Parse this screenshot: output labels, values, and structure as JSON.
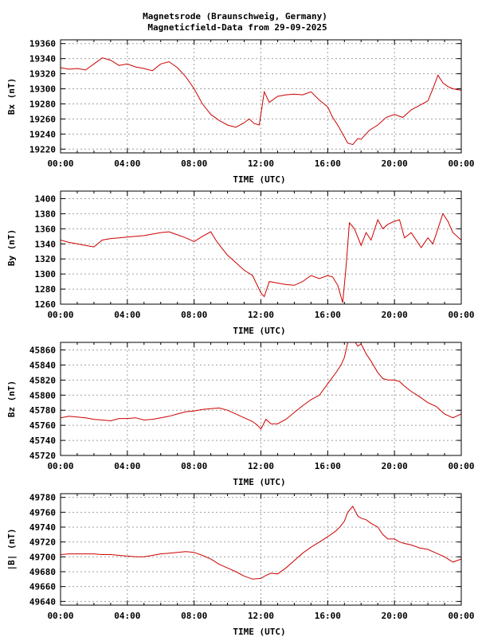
{
  "title_line1": "Magnetsrode (Braunschweig, Germany)",
  "title_line2": "Magneticfield-Data from 29-09-2025",
  "colors": {
    "line": "#cc0000",
    "grid": "#a0a0a0",
    "axis": "#000000"
  },
  "chart_data": [
    {
      "type": "line",
      "series": [
        {
          "name": "",
          "x": [
            0,
            0.5,
            1,
            1.5,
            2,
            2.5,
            3,
            3.5,
            4,
            4.5,
            5,
            5.5,
            6,
            6.5,
            7,
            7.5,
            8,
            8.5,
            9,
            9.5,
            10,
            10.5,
            11,
            11.3,
            11.6,
            11.9,
            12.2,
            12.5,
            13,
            13.5,
            14,
            14.5,
            15,
            15.5,
            16,
            16.3,
            16.6,
            16.9,
            17.2,
            17.5,
            17.8,
            18,
            18.5,
            19,
            19.5,
            20,
            20.5,
            21,
            21.5,
            22,
            22.3,
            22.6,
            22.9,
            23.2,
            23.5,
            24
          ],
          "y": [
            19328,
            19326,
            19327,
            19325,
            19333,
            19341,
            19338,
            19331,
            19333,
            19329,
            19327,
            19324,
            19333,
            19336,
            19328,
            19316,
            19300,
            19280,
            19266,
            19258,
            19252,
            19249,
            19255,
            19260,
            19254,
            19252,
            19296,
            19282,
            19290,
            19292,
            19293,
            19292,
            19296,
            19285,
            19276,
            19262,
            19252,
            19240,
            19228,
            19226,
            19234,
            19233,
            19245,
            19252,
            19262,
            19266,
            19262,
            19272,
            19278,
            19284,
            19300,
            19318,
            19308,
            19303,
            19300,
            19298
          ]
        }
      ],
      "xlabel": "TIME (UTC)",
      "ylabel": "Bx (nT)",
      "xlim": [
        0,
        24
      ],
      "ylim": [
        19215,
        19365
      ],
      "xticks": [
        "00:00",
        "04:00",
        "08:00",
        "12:00",
        "16:00",
        "20:00",
        "00:00"
      ],
      "yticks": [
        19220,
        19240,
        19260,
        19280,
        19300,
        19320,
        19340,
        19360
      ]
    },
    {
      "type": "line",
      "series": [
        {
          "name": "",
          "x": [
            0,
            0.5,
            1,
            1.5,
            2,
            2.5,
            3,
            3.5,
            4,
            4.5,
            5,
            5.5,
            6,
            6.5,
            7,
            7.5,
            8,
            8.5,
            9,
            9.3,
            9.6,
            10,
            10.5,
            11,
            11.5,
            12,
            12.2,
            12.5,
            13,
            13.5,
            14,
            14.5,
            15,
            15.5,
            16,
            16.3,
            16.6,
            16.9,
            17.1,
            17.3,
            17.6,
            18,
            18.3,
            18.6,
            19,
            19.3,
            19.6,
            20,
            20.3,
            20.6,
            21,
            21.3,
            21.6,
            22,
            22.3,
            22.6,
            22.9,
            23.2,
            23.5,
            24
          ],
          "y": [
            1345,
            1342,
            1340,
            1338,
            1336,
            1345,
            1347,
            1348,
            1349,
            1350,
            1351,
            1353,
            1355,
            1356,
            1352,
            1348,
            1343,
            1350,
            1356,
            1345,
            1336,
            1325,
            1315,
            1305,
            1298,
            1275,
            1270,
            1290,
            1288,
            1286,
            1285,
            1290,
            1298,
            1294,
            1298,
            1296,
            1285,
            1262,
            1310,
            1368,
            1360,
            1338,
            1355,
            1345,
            1372,
            1360,
            1366,
            1370,
            1372,
            1348,
            1355,
            1345,
            1335,
            1348,
            1340,
            1360,
            1380,
            1370,
            1355,
            1345
          ]
        }
      ],
      "xlabel": "TIME (UTC)",
      "ylabel": "By (nT)",
      "xlim": [
        0,
        24
      ],
      "ylim": [
        1260,
        1410
      ],
      "xticks": [
        "00:00",
        "04:00",
        "08:00",
        "12:00",
        "16:00",
        "20:00",
        "00:00"
      ],
      "yticks": [
        1260,
        1280,
        1300,
        1320,
        1340,
        1360,
        1380,
        1400
      ]
    },
    {
      "type": "line",
      "series": [
        {
          "name": "",
          "x": [
            0,
            0.5,
            1,
            1.5,
            2,
            2.5,
            3,
            3.5,
            4,
            4.5,
            5,
            5.5,
            6,
            6.5,
            7,
            7.5,
            8,
            8.5,
            9,
            9.5,
            10,
            10.5,
            11,
            11.5,
            11.8,
            12,
            12.3,
            12.6,
            13,
            13.5,
            14,
            14.5,
            15,
            15.5,
            16,
            16.5,
            16.8,
            17,
            17.2,
            17.5,
            17.8,
            18,
            18.3,
            18.6,
            19,
            19.3,
            19.6,
            20,
            20.3,
            20.6,
            21,
            21.5,
            22,
            22.5,
            23,
            23.5,
            24
          ],
          "y": [
            45770,
            45772,
            45771,
            45770,
            45768,
            45767,
            45766,
            45769,
            45769,
            45770,
            45767,
            45768,
            45770,
            45772,
            45775,
            45778,
            45779,
            45781,
            45782,
            45783,
            45780,
            45775,
            45770,
            45765,
            45760,
            45755,
            45768,
            45762,
            45762,
            45768,
            45777,
            45786,
            45794,
            45800,
            45815,
            45830,
            45840,
            45850,
            45870,
            45875,
            45865,
            45868,
            45855,
            45845,
            45830,
            45822,
            45820,
            45820,
            45818,
            45812,
            45805,
            45798,
            45790,
            45785,
            45775,
            45770,
            45775
          ]
        }
      ],
      "xlabel": "TIME (UTC)",
      "ylabel": "Bz (nT)",
      "xlim": [
        0,
        24
      ],
      "ylim": [
        45720,
        45870
      ],
      "xticks": [
        "00:00",
        "04:00",
        "08:00",
        "12:00",
        "16:00",
        "20:00",
        "00:00"
      ],
      "yticks": [
        45720,
        45740,
        45760,
        45780,
        45800,
        45820,
        45840,
        45860
      ]
    },
    {
      "type": "line",
      "series": [
        {
          "name": "",
          "x": [
            0,
            0.5,
            1,
            1.5,
            2,
            2.5,
            3,
            3.5,
            4,
            4.5,
            5,
            5.5,
            6,
            6.5,
            7,
            7.5,
            8,
            8.5,
            9,
            9.5,
            10,
            10.5,
            11,
            11.5,
            12,
            12.3,
            12.6,
            13,
            13.5,
            14,
            14.5,
            15,
            15.5,
            16,
            16.5,
            16.8,
            17,
            17.2,
            17.5,
            17.8,
            18,
            18.3,
            18.6,
            19,
            19.3,
            19.6,
            20,
            20.3,
            20.6,
            21,
            21.5,
            22,
            22.5,
            23,
            23.5,
            24
          ],
          "y": [
            49703,
            49704,
            49704,
            49704,
            49704,
            49703,
            49703,
            49702,
            49701,
            49700,
            49700,
            49702,
            49704,
            49705,
            49706,
            49707,
            49706,
            49702,
            49697,
            49690,
            49685,
            49680,
            49674,
            49670,
            49671,
            49675,
            49678,
            49677,
            49685,
            49695,
            49705,
            49713,
            49720,
            49727,
            49735,
            49742,
            49748,
            49760,
            49768,
            49755,
            49752,
            49750,
            49745,
            49740,
            49730,
            49724,
            49724,
            49720,
            49718,
            49716,
            49712,
            49710,
            49705,
            49700,
            49693,
            49697
          ]
        }
      ],
      "xlabel": "TIME (UTC)",
      "ylabel": "|B| (nT)",
      "xlim": [
        0,
        24
      ],
      "ylim": [
        49635,
        49785
      ],
      "xticks": [
        "00:00",
        "04:00",
        "08:00",
        "12:00",
        "16:00",
        "20:00",
        "00:00"
      ],
      "yticks": [
        49640,
        49660,
        49680,
        49700,
        49720,
        49740,
        49760,
        49780
      ]
    }
  ]
}
